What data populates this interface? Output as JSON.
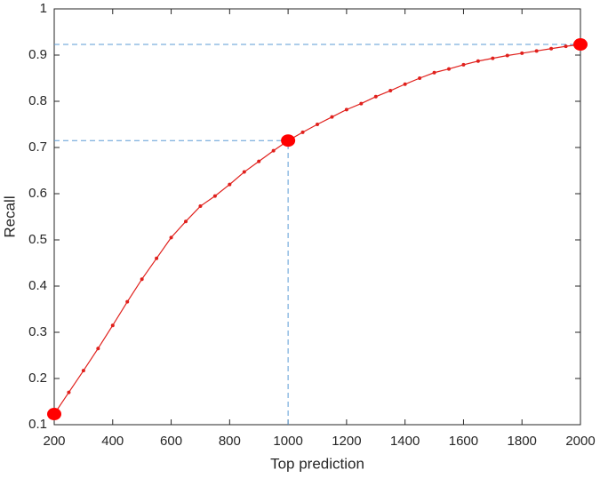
{
  "chart_data": {
    "type": "line",
    "xlabel": "Top prediction",
    "ylabel": "Recall",
    "x": [
      200,
      250,
      300,
      350,
      400,
      450,
      500,
      550,
      600,
      650,
      700,
      750,
      800,
      850,
      900,
      950,
      1000,
      1050,
      1100,
      1150,
      1200,
      1250,
      1300,
      1350,
      1400,
      1450,
      1500,
      1550,
      1600,
      1650,
      1700,
      1750,
      1800,
      1850,
      1900,
      1950,
      2000
    ],
    "values": [
      0.123,
      0.17,
      0.217,
      0.265,
      0.315,
      0.366,
      0.415,
      0.46,
      0.505,
      0.54,
      0.573,
      0.595,
      0.62,
      0.647,
      0.67,
      0.693,
      0.715,
      0.733,
      0.75,
      0.766,
      0.782,
      0.795,
      0.81,
      0.823,
      0.837,
      0.85,
      0.862,
      0.87,
      0.879,
      0.887,
      0.893,
      0.899,
      0.904,
      0.909,
      0.914,
      0.919,
      0.923
    ],
    "color": "#e0201c",
    "highlights": {
      "x": [
        200,
        1000,
        2000
      ],
      "y": [
        0.123,
        0.715,
        0.923
      ],
      "color": "#ff0000",
      "line_color": "#5b9bd5"
    },
    "xlim": [
      200,
      2000
    ],
    "ylim": [
      0.1,
      1
    ],
    "xticks": [
      200,
      400,
      600,
      800,
      1000,
      1200,
      1400,
      1600,
      1800,
      2000
    ],
    "yticks": [
      0.1,
      0.2,
      0.3,
      0.4,
      0.5,
      0.6,
      0.7,
      0.8,
      0.9,
      1
    ],
    "grid": false
  }
}
